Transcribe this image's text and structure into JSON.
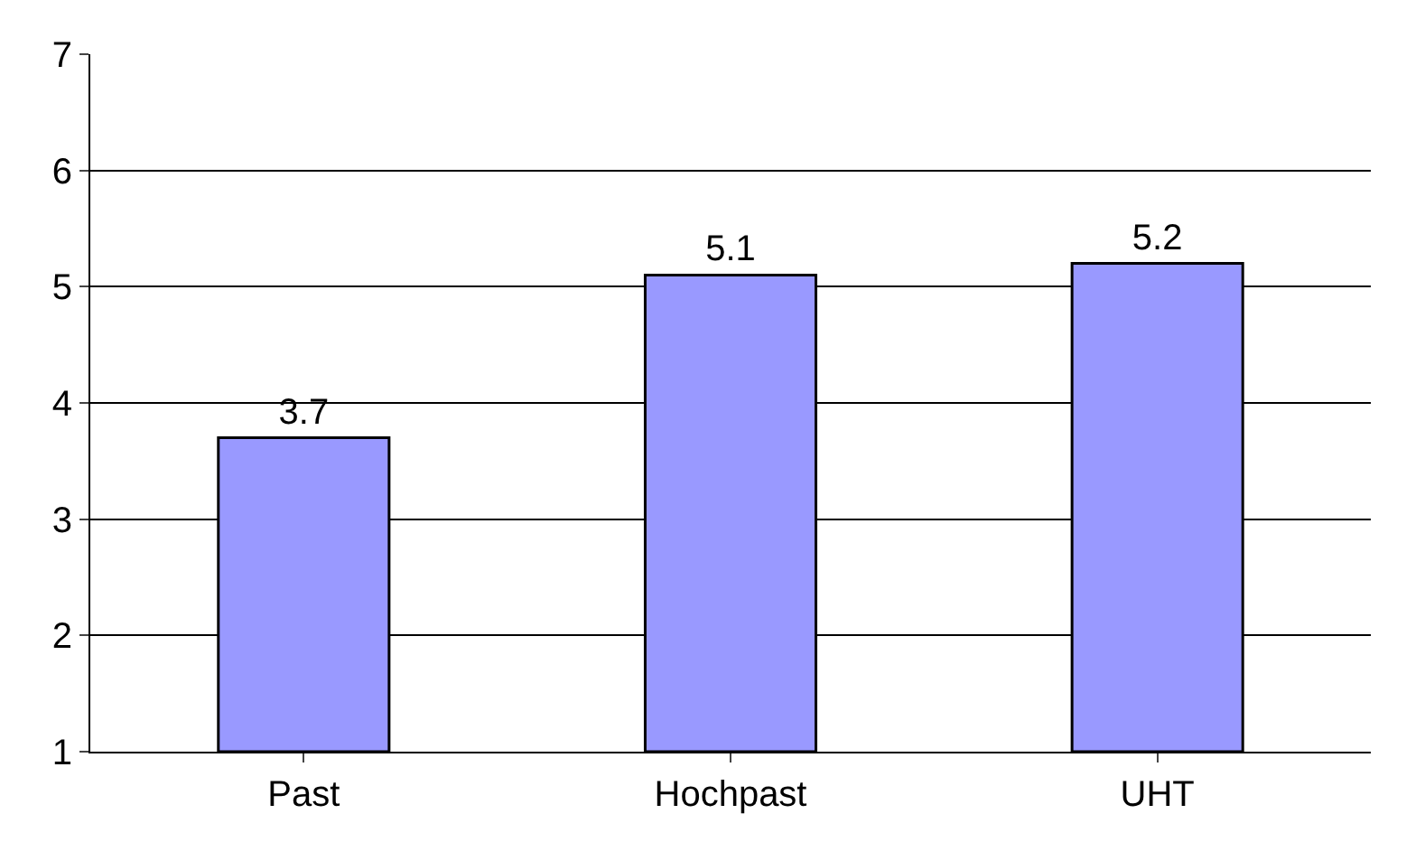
{
  "chart_data": {
    "type": "bar",
    "categories": [
      "Past",
      "Hochpast",
      "UHT"
    ],
    "values": [
      3.7,
      5.1,
      5.2
    ],
    "color": "#9999ff",
    "ylim": [
      1,
      7
    ],
    "yticks": [
      1,
      2,
      3,
      4,
      5,
      6,
      7
    ],
    "grid": "y",
    "data_labels": true
  }
}
